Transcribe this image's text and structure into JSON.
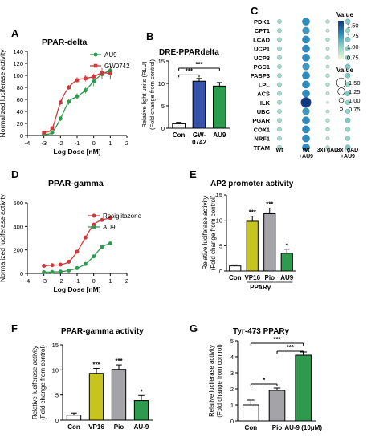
{
  "panels": {
    "A": {
      "letter": "A",
      "title": "PPAR-delta"
    },
    "B": {
      "letter": "B",
      "title": "DRE-PPARdelta"
    },
    "C": {
      "letter": "C"
    },
    "D": {
      "letter": "D",
      "title": "PPAR-gamma"
    },
    "E": {
      "letter": "E",
      "title": "AP2 promoter activity"
    },
    "F": {
      "letter": "F",
      "title": "PPAR-gamma activity"
    },
    "G": {
      "letter": "G",
      "title": "Tyr-473 PPARγ"
    }
  },
  "colors": {
    "red": "#cc3a3a",
    "green": "#2e9a4e",
    "blue": "#3352a8",
    "yellow": "#c7c41f",
    "gray": "#a4a4a8",
    "white": "#ffffff"
  },
  "chart_data": [
    {
      "id": "A",
      "type": "line",
      "title": "PPAR-delta",
      "xlabel": "Log Dose [nM]",
      "ylabel": "Normalized luciferase activity",
      "xlim": [
        -4,
        2
      ],
      "ylim": [
        0,
        140
      ],
      "xticks": [
        "-4",
        "-3",
        "-2",
        "-1",
        "0",
        "1",
        "2"
      ],
      "yticks": [
        "0",
        "20",
        "40",
        "60",
        "80",
        "100",
        "120",
        "140"
      ],
      "legend_position": "top-right",
      "series": [
        {
          "name": "AU9",
          "color": "#2e9a4e",
          "marker": "circle",
          "x": [
            -3,
            -2.5,
            -2,
            -1.5,
            -1,
            -0.5,
            0,
            0.5,
            1
          ],
          "y": [
            2,
            5,
            28,
            56,
            65,
            75,
            90,
            102,
            108
          ],
          "err": [
            2,
            3,
            4,
            5,
            5,
            5,
            8,
            8,
            12
          ]
        },
        {
          "name": "GW0742",
          "color": "#cc3a3a",
          "marker": "square",
          "x": [
            -3,
            -2.5,
            -2,
            -1.5,
            -1,
            -0.5,
            0,
            0.5,
            1
          ],
          "y": [
            5,
            12,
            55,
            80,
            92,
            95,
            98,
            104,
            103
          ],
          "err": [
            2,
            3,
            4,
            4,
            5,
            5,
            5,
            8,
            10
          ]
        }
      ]
    },
    {
      "id": "B",
      "type": "bar",
      "title": "DRE-PPARdelta",
      "ylabel": "Relative light units (RLU)",
      "ylabel2": "(Fold change from control)",
      "categories": [
        "Con",
        "GW-0742",
        "AU9"
      ],
      "category_lines": [
        [
          "Con"
        ],
        [
          "GW-",
          "0742"
        ],
        [
          "AU9"
        ]
      ],
      "values": [
        1,
        10.5,
        9.4
      ],
      "errors": [
        0.3,
        0.6,
        0.8
      ],
      "colors": [
        "#ffffff",
        "#3352a8",
        "#2e9a4e"
      ],
      "ylim": [
        0,
        15
      ],
      "yticks": [
        "0",
        "5",
        "10",
        "15"
      ],
      "annotations": [
        {
          "text": "***",
          "from": 0,
          "to": 2,
          "level": 13.4
        },
        {
          "text": "***",
          "from": 0,
          "to": 1,
          "level": 11.9
        }
      ]
    },
    {
      "id": "C",
      "type": "heatmap",
      "rows": [
        "PDK1",
        "CPT1",
        "LCAD",
        "UCP1",
        "UCP3",
        "PGC1",
        "FABP3",
        "LPL",
        "ACS",
        "ILK",
        "UBC",
        "PGAR",
        "COX1",
        "NRF1",
        "TFAM"
      ],
      "columns": [
        "Wt",
        "Wt +AU9",
        "3xTgAD",
        "3xTgAD +AU9"
      ],
      "column_lines": [
        [
          "Wt"
        ],
        [
          "Wt",
          "+AU9"
        ],
        [
          "3xTgAD"
        ],
        [
          "3xTgAD",
          "+AU9"
        ]
      ],
      "values": [
        [
          0.95,
          1.3,
          0.9,
          1.05
        ],
        [
          0.95,
          1.25,
          0.85,
          1.0
        ],
        [
          0.95,
          1.3,
          0.9,
          1.05
        ],
        [
          0.95,
          1.3,
          0.85,
          1.0
        ],
        [
          0.95,
          1.3,
          0.9,
          1.0
        ],
        [
          0.95,
          1.25,
          0.85,
          1.05
        ],
        [
          0.95,
          1.3,
          0.9,
          1.05
        ],
        [
          0.95,
          1.3,
          0.9,
          1.0
        ],
        [
          0.95,
          1.3,
          0.85,
          1.05
        ],
        [
          0.95,
          1.6,
          0.75,
          1.0
        ],
        [
          0.95,
          1.25,
          0.85,
          1.0
        ],
        [
          0.95,
          1.3,
          0.9,
          1.05
        ],
        [
          0.95,
          1.3,
          0.9,
          1.0
        ],
        [
          0.95,
          1.3,
          0.85,
          1.0
        ],
        [
          0.95,
          1.3,
          0.9,
          1.05
        ]
      ],
      "color_legend_title": "Value",
      "color_ticks": [
        "1.50",
        "1.25",
        "1.00",
        "0.75"
      ],
      "size_legend_title": "Value",
      "size_ticks": [
        "1.50",
        "1.25",
        "1.00",
        "0.75"
      ],
      "vlim": [
        0.7,
        1.6
      ]
    },
    {
      "id": "D",
      "type": "line",
      "title": "PPAR-gamma",
      "xlabel": "Log Dose [nM]",
      "ylabel": "Normalized luciferase activity",
      "xlim": [
        -4,
        2
      ],
      "ylim": [
        0,
        600
      ],
      "xticks": [
        "-4",
        "-3",
        "-2",
        "-1",
        "0",
        "1",
        "2"
      ],
      "yticks": [
        "0",
        "200",
        "400",
        "600"
      ],
      "legend_position": "right",
      "series": [
        {
          "name": "Rosiglitazone",
          "color": "#cc3a3a",
          "marker": "circle",
          "x": [
            -3,
            -2.5,
            -2,
            -1.5,
            -1,
            -0.5,
            0,
            0.5,
            1
          ],
          "y": [
            65,
            70,
            75,
            100,
            185,
            305,
            415,
            455,
            470
          ],
          "err": [
            5,
            5,
            6,
            8,
            10,
            12,
            15,
            15,
            15
          ]
        },
        {
          "name": "AU9",
          "color": "#2e9a4e",
          "marker": "circle",
          "x": [
            -3,
            -2.5,
            -2,
            -1.5,
            -1,
            -0.5,
            0,
            0.5,
            1
          ],
          "y": [
            10,
            12,
            15,
            25,
            45,
            80,
            145,
            225,
            255
          ],
          "err": [
            5,
            5,
            5,
            6,
            8,
            10,
            12,
            15,
            15
          ]
        }
      ]
    },
    {
      "id": "E",
      "type": "bar",
      "title": "AP2 promoter activity",
      "ylabel": "Relative luciferase activity",
      "ylabel2": "(Fold change from control)",
      "categories": [
        "Con",
        "VP16",
        "Pio",
        "AU9"
      ],
      "category_lines": [
        [
          "Con"
        ],
        [
          "VP16"
        ],
        [
          "Pio"
        ],
        [
          "AU9"
        ]
      ],
      "group_label": "PPARγ",
      "values": [
        1,
        9.8,
        11.3,
        3.5
      ],
      "errors": [
        0.2,
        1.0,
        1.1,
        0.8
      ],
      "colors": [
        "#ffffff",
        "#c7c41f",
        "#a4a4a8",
        "#2e9a4e"
      ],
      "ylim": [
        0,
        15
      ],
      "yticks": [
        "0",
        "5",
        "10",
        "15"
      ],
      "stars": [
        "",
        "***",
        "***",
        "*"
      ]
    },
    {
      "id": "F",
      "type": "bar",
      "title": "PPAR-gamma activity",
      "ylabel": "Relative luciferase activity",
      "ylabel2": "(Fold change from control)",
      "categories": [
        "Con",
        "VP16",
        "Pio",
        "AU-9"
      ],
      "category_lines": [
        [
          "Con"
        ],
        [
          "VP16"
        ],
        [
          "Pio"
        ],
        [
          "AU-9"
        ]
      ],
      "values": [
        1,
        9.3,
        10.1,
        3.9
      ],
      "errors": [
        0.4,
        1.0,
        0.9,
        1.0
      ],
      "colors": [
        "#ffffff",
        "#c7c41f",
        "#a4a4a8",
        "#2e9a4e"
      ],
      "ylim": [
        0,
        15
      ],
      "yticks": [
        "0",
        "5",
        "10",
        "15"
      ],
      "stars": [
        "",
        "***",
        "***",
        "*"
      ]
    },
    {
      "id": "G",
      "type": "bar",
      "title": "Tyr-473 PPARγ",
      "ylabel": "Relative luciferase activity",
      "ylabel2": "(Fold change from control)",
      "categories": [
        "Con",
        "Pio",
        "AU-9 (10μM)"
      ],
      "category_lines": [
        [
          "Con"
        ],
        [
          "Pio"
        ],
        [
          "AU-9 (10μM)"
        ]
      ],
      "values": [
        1.0,
        1.9,
        4.1
      ],
      "errors": [
        0.3,
        0.15,
        0.2
      ],
      "colors": [
        "#ffffff",
        "#a4a4a8",
        "#2e9a4e"
      ],
      "ylim": [
        0,
        5
      ],
      "yticks": [
        "0",
        "1",
        "2",
        "3",
        "4",
        "5"
      ],
      "annotations": [
        {
          "text": "***",
          "from": 0,
          "to": 2,
          "level": 4.85
        },
        {
          "text": "***",
          "from": 1,
          "to": 2,
          "level": 4.35
        },
        {
          "text": "*",
          "from": 0,
          "to": 1,
          "level": 2.3
        }
      ]
    }
  ]
}
